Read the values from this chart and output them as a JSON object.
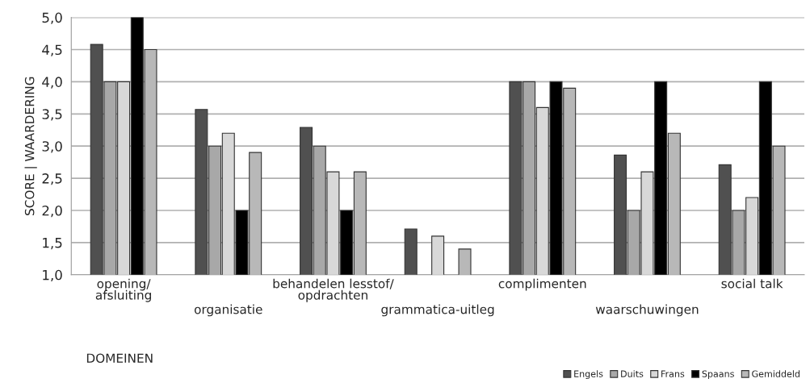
{
  "chart_data": {
    "type": "bar",
    "xlabel": "DOMEINEN",
    "ylabel": "SCORE | WAARDERING",
    "categories": [
      "opening/\nafsluiting",
      "organisatie",
      "behandelen lesstof/\nopdrachten",
      "grammatica-uitleg",
      "complimenten",
      "waarschuwingen",
      "social talk"
    ],
    "series": [
      {
        "name": "Engels",
        "color": "#505050",
        "values": [
          4.58,
          3.57,
          3.29,
          1.71,
          4.0,
          2.86,
          2.71
        ]
      },
      {
        "name": "Duits",
        "color": "#a8a8a8",
        "values": [
          4.0,
          3.0,
          3.0,
          null,
          4.0,
          2.0,
          2.0
        ]
      },
      {
        "name": "Frans",
        "color": "#d8d8d8",
        "values": [
          4.0,
          3.2,
          2.6,
          1.6,
          3.6,
          2.6,
          2.2
        ]
      },
      {
        "name": "Spaans",
        "color": "#000000",
        "values": [
          5.0,
          2.0,
          2.0,
          null,
          4.0,
          4.0,
          4.0
        ]
      },
      {
        "name": "Gemiddeld",
        "color": "#b8b8b8",
        "values": [
          4.5,
          2.9,
          2.6,
          1.4,
          3.9,
          3.2,
          3.0
        ]
      }
    ],
    "ylim": [
      1.0,
      5.0
    ],
    "yticks": [
      {
        "value": 1.0,
        "label": "1,0"
      },
      {
        "value": 1.5,
        "label": "1,5"
      },
      {
        "value": 2.0,
        "label": "2,0"
      },
      {
        "value": 2.5,
        "label": "2,5"
      },
      {
        "value": 3.0,
        "label": "3,0"
      },
      {
        "value": 3.5,
        "label": "3,5"
      },
      {
        "value": 4.0,
        "label": "4,0"
      },
      {
        "value": 4.5,
        "label": "4,5"
      },
      {
        "value": 5.0,
        "label": "5,0"
      }
    ],
    "grid": "y",
    "legend": "bottom right"
  }
}
